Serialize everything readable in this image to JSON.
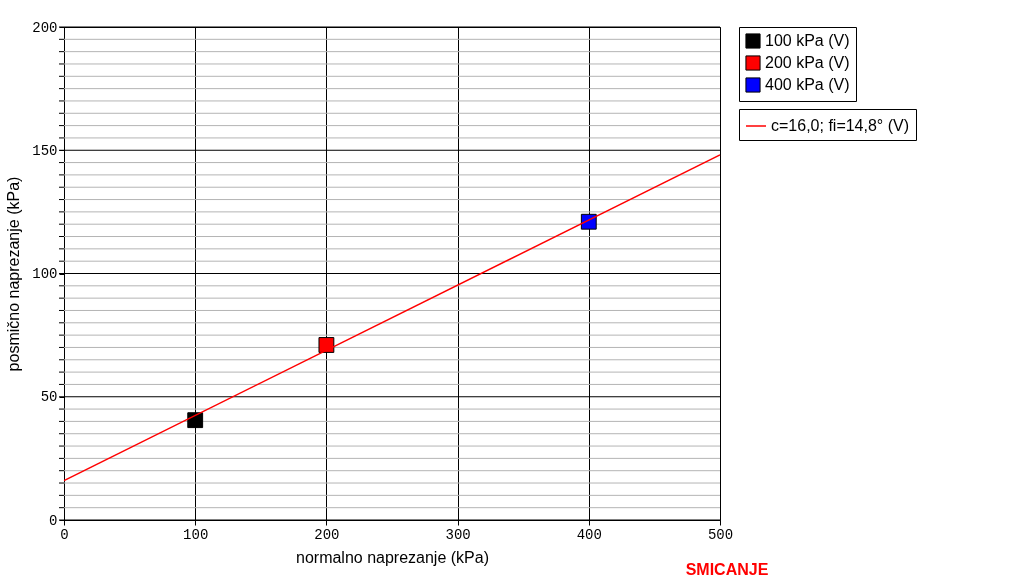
{
  "chart_data": {
    "type": "scatter",
    "xlabel": "normalno naprezanje (kPa)",
    "ylabel": "posmično naprezanje (kPa)",
    "xlim": [
      0,
      500
    ],
    "xticks": [
      0,
      100,
      200,
      300,
      400,
      500
    ],
    "ylim": [
      0,
      200
    ],
    "yticks": [
      0,
      {
        "value": 5,
        "label": null
      },
      {
        "value": 10,
        "label": null
      },
      {
        "value": 15,
        "label": null
      },
      {
        "value": 20,
        "label": null
      },
      {
        "value": 25,
        "label": null
      },
      {
        "value": 30,
        "label": null
      },
      {
        "value": 35,
        "label": null
      },
      {
        "value": 40,
        "label": null
      },
      {
        "value": 45,
        "label": null
      },
      50,
      {
        "value": 55,
        "label": null
      },
      {
        "value": 60,
        "label": null
      },
      {
        "value": 65,
        "label": null
      },
      {
        "value": 70,
        "label": null
      },
      {
        "value": 75,
        "label": null
      },
      {
        "value": 80,
        "label": null
      },
      {
        "value": 85,
        "label": null
      },
      {
        "value": 90,
        "label": null
      },
      {
        "value": 95,
        "label": null
      },
      100,
      {
        "value": 105,
        "label": null
      },
      {
        "value": 110,
        "label": null
      },
      {
        "value": 115,
        "label": null
      },
      {
        "value": 120,
        "label": null
      },
      {
        "value": 125,
        "label": null
      },
      {
        "value": 130,
        "label": null
      },
      {
        "value": 135,
        "label": null
      },
      {
        "value": 140,
        "label": null
      },
      {
        "value": 145,
        "label": null
      },
      150,
      {
        "value": 155,
        "label": null
      },
      {
        "value": 160,
        "label": null
      },
      {
        "value": 165,
        "label": null
      },
      {
        "value": 170,
        "label": null
      },
      {
        "value": 175,
        "label": null
      },
      {
        "value": 180,
        "label": null
      },
      {
        "value": 185,
        "label": null
      },
      {
        "value": 190,
        "label": null
      },
      {
        "value": 195,
        "label": null
      },
      200
    ],
    "grid": true,
    "legend": "top right",
    "marker": "square",
    "series": [
      {
        "name": "100 kPa (V)",
        "color": "#000000",
        "x": [
          100
        ],
        "values": [
          40.5
        ]
      },
      {
        "name": "200 kPa (V)",
        "color": "#ff0000",
        "x": [
          200
        ],
        "values": [
          71
        ]
      },
      {
        "name": "400 kPa (V)",
        "color": "#0000ff",
        "x": [
          400
        ],
        "values": [
          121
        ]
      },
      {
        "name": "c=16,0; fi=14,8° (V)",
        "color": "#ff0000",
        "type": "line",
        "x": [
          0,
          500
        ],
        "values": [
          16,
          148.1
        ],
        "line_style": "solid",
        "marker": "none"
      }
    ],
    "annotations": [
      "SMICANJE"
    ]
  }
}
